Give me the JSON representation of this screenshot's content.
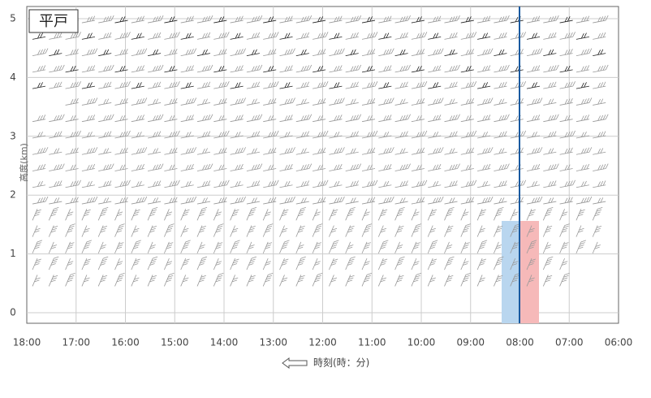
{
  "chart_data": {
    "type": "wind-profiler",
    "title": "平戸",
    "y_label": "高度(km)",
    "x_label": "時刻(時：分)",
    "categories": [
      "18:00",
      "17:00",
      "16:00",
      "15:00",
      "14:00",
      "13:00",
      "12:00",
      "11:00",
      "10:00",
      "09:00",
      "08:00",
      "07:00",
      "06:00"
    ],
    "ylim": [
      0,
      5
    ],
    "yticks": [
      0,
      1,
      2,
      3,
      4,
      5
    ],
    "grid": true
  }
}
